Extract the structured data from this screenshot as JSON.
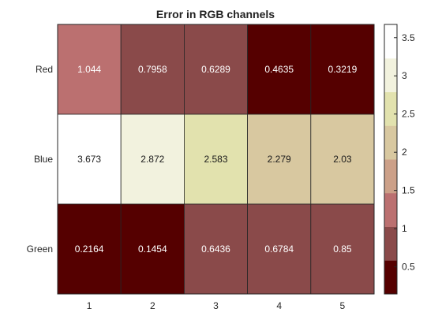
{
  "chart_data": {
    "type": "heatmap",
    "title": "Error in RGB channels",
    "x_categories": [
      "1",
      "2",
      "3",
      "4",
      "5"
    ],
    "y_categories": [
      "Red",
      "Blue",
      "Green"
    ],
    "values": [
      [
        1.044,
        0.7958,
        0.6289,
        0.4635,
        0.3219
      ],
      [
        3.673,
        2.872,
        2.583,
        2.279,
        2.03
      ],
      [
        0.2164,
        0.1454,
        0.6436,
        0.6784,
        0.85
      ]
    ],
    "cell_labels": [
      [
        "1.044",
        "0.7958",
        "0.6289",
        "0.4635",
        "0.3219"
      ],
      [
        "3.673",
        "2.872",
        "2.583",
        "2.279",
        "2.03"
      ],
      [
        "0.2164",
        "0.1454",
        "0.6436",
        "0.6784",
        "0.85"
      ]
    ],
    "colorbar": {
      "min": 0.1454,
      "max": 3.673,
      "ticks": [
        "0.5",
        "1",
        "1.5",
        "2",
        "2.5",
        "3",
        "3.5"
      ],
      "tick_values": [
        0.5,
        1,
        1.5,
        2,
        2.5,
        3,
        3.5
      ],
      "colors": [
        "#550000",
        "#8a4a4a",
        "#bb7070",
        "#cca088",
        "#d8c8a0",
        "#e2e2ae",
        "#f2f2de",
        "#ffffff"
      ]
    },
    "grid": false,
    "colorbar_position": "right"
  }
}
